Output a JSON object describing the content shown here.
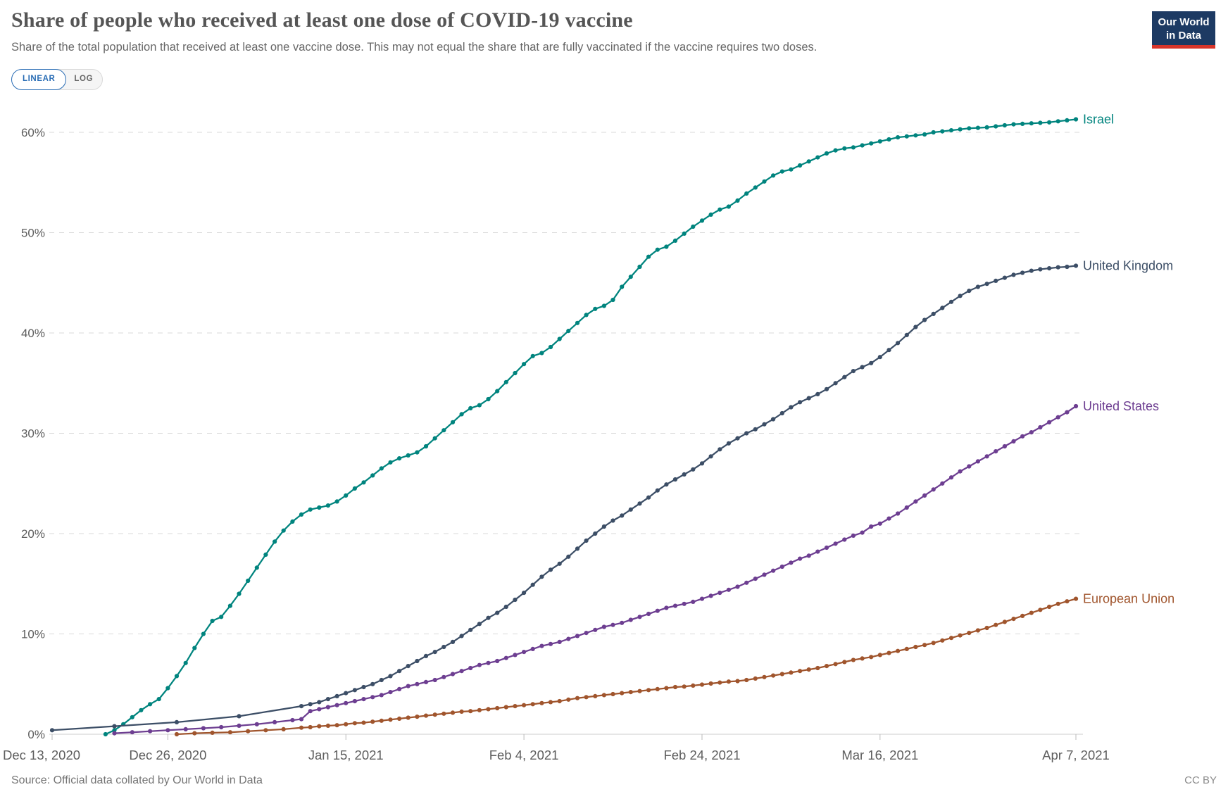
{
  "header": {
    "title": "Share of people who received at least one dose of COVID-19 vaccine",
    "subtitle": "Share of the total population that received at least one vaccine dose. This may not equal the share that are fully vaccinated if the vaccine requires two doses.",
    "logo_line1": "Our World",
    "logo_line2": "in Data",
    "logo_bg_color": "#1d3a63",
    "logo_accent_color": "#d8352a"
  },
  "toolbar": {
    "linear_label": "LINEAR",
    "log_label": "LOG",
    "active_scale": "LINEAR",
    "accent_color": "#2a6db5"
  },
  "footer": {
    "source": "Source: Official data collated by Our World in Data",
    "license": "CC BY"
  },
  "chart_data": {
    "type": "line",
    "title": "Share of people who received at least one dose of COVID-19 vaccine",
    "grid": "dashed-horizontal",
    "legend_position": "right-end-labels",
    "x_axis": {
      "start_date": "Dec 13, 2020",
      "end_date": "Apr 7, 2021",
      "total_days": 115,
      "tick_days": [
        0,
        13,
        33,
        53,
        73,
        93,
        115
      ],
      "tick_labels": [
        "Dec 13, 2020",
        "Dec 26, 2020",
        "Jan 15, 2021",
        "Feb 4, 2021",
        "Feb 24, 2021",
        "Mar 16, 2021",
        "Apr 7, 2021"
      ]
    },
    "y_axis": {
      "unit": "%",
      "ticks": [
        0,
        10,
        20,
        30,
        40,
        50,
        60
      ],
      "ylim": [
        0,
        62
      ]
    },
    "series": [
      {
        "name": "Israel",
        "color": "#00847E",
        "end_value": 61.3,
        "start_points": [],
        "daily_start_day": 6,
        "daily_values": [
          0.0,
          0.4,
          1.0,
          1.7,
          2.4,
          3.0,
          3.5,
          4.6,
          5.8,
          7.1,
          8.6,
          10.0,
          11.3,
          11.7,
          12.8,
          14.0,
          15.3,
          16.6,
          17.9,
          19.2,
          20.3,
          21.2,
          21.9,
          22.4,
          22.6,
          22.8,
          23.2,
          23.8,
          24.5,
          25.1,
          25.8,
          26.5,
          27.1,
          27.5,
          27.8,
          28.1,
          28.7,
          29.5,
          30.3,
          31.1,
          31.9,
          32.5,
          32.8,
          33.4,
          34.2,
          35.1,
          36.0,
          36.9,
          37.7,
          38.0,
          38.6,
          39.4,
          40.2,
          41.0,
          41.8,
          42.4,
          42.7,
          43.3,
          44.6,
          45.6,
          46.6,
          47.6,
          48.3,
          48.6,
          49.2,
          49.9,
          50.6,
          51.2,
          51.8,
          52.3,
          52.6,
          53.2,
          53.9,
          54.5,
          55.1,
          55.7,
          56.1,
          56.3,
          56.7,
          57.1,
          57.5,
          57.9,
          58.2,
          58.4,
          58.5,
          58.7,
          58.9,
          59.1,
          59.3,
          59.5,
          59.6,
          59.7,
          59.8,
          60.0,
          60.1,
          60.2,
          60.3,
          60.4,
          60.45,
          60.5,
          60.6,
          60.7,
          60.8,
          60.85,
          60.9,
          60.95,
          61.0,
          61.1,
          61.2,
          61.3
        ]
      },
      {
        "name": "United Kingdom",
        "color": "#3C4E66",
        "end_value": 46.7,
        "start_points": [
          [
            0,
            0.4
          ],
          [
            7,
            0.8
          ],
          [
            14,
            1.2
          ],
          [
            21,
            1.8
          ],
          [
            28,
            2.8
          ]
        ],
        "daily_start_day": 29,
        "daily_values": [
          3.0,
          3.2,
          3.5,
          3.8,
          4.1,
          4.4,
          4.7,
          5.0,
          5.4,
          5.8,
          6.3,
          6.8,
          7.3,
          7.8,
          8.2,
          8.7,
          9.2,
          9.8,
          10.4,
          11.0,
          11.6,
          12.1,
          12.7,
          13.4,
          14.1,
          14.9,
          15.7,
          16.4,
          17.0,
          17.7,
          18.5,
          19.3,
          20.0,
          20.7,
          21.3,
          21.8,
          22.4,
          23.0,
          23.6,
          24.3,
          24.9,
          25.4,
          25.9,
          26.4,
          27.0,
          27.7,
          28.4,
          29.0,
          29.5,
          30.0,
          30.4,
          30.9,
          31.4,
          32.0,
          32.6,
          33.1,
          33.5,
          33.9,
          34.4,
          35.0,
          35.6,
          36.2,
          36.6,
          37.0,
          37.6,
          38.3,
          39.0,
          39.8,
          40.6,
          41.3,
          41.9,
          42.5,
          43.1,
          43.7,
          44.2,
          44.6,
          44.9,
          45.2,
          45.5,
          45.8,
          46.0,
          46.2,
          46.35,
          46.45,
          46.55,
          46.6,
          46.7
        ]
      },
      {
        "name": "United States",
        "color": "#6D3E91",
        "end_value": 32.7,
        "start_points": [
          [
            7,
            0.1
          ],
          [
            9,
            0.2
          ],
          [
            11,
            0.3
          ],
          [
            13,
            0.4
          ],
          [
            15,
            0.5
          ],
          [
            17,
            0.6
          ],
          [
            19,
            0.7
          ],
          [
            21,
            0.85
          ],
          [
            23,
            1.0
          ],
          [
            25,
            1.2
          ],
          [
            27,
            1.4
          ],
          [
            28,
            1.5
          ]
        ],
        "daily_start_day": 29,
        "daily_values": [
          2.3,
          2.5,
          2.7,
          2.9,
          3.1,
          3.3,
          3.5,
          3.7,
          3.9,
          4.2,
          4.5,
          4.8,
          5.0,
          5.2,
          5.4,
          5.7,
          6.0,
          6.3,
          6.6,
          6.9,
          7.1,
          7.3,
          7.6,
          7.9,
          8.2,
          8.5,
          8.8,
          9.0,
          9.2,
          9.5,
          9.8,
          10.1,
          10.4,
          10.7,
          10.9,
          11.1,
          11.4,
          11.7,
          12.0,
          12.3,
          12.6,
          12.8,
          13.0,
          13.2,
          13.5,
          13.8,
          14.1,
          14.4,
          14.7,
          15.1,
          15.5,
          15.9,
          16.3,
          16.7,
          17.1,
          17.5,
          17.8,
          18.2,
          18.6,
          19.0,
          19.4,
          19.8,
          20.1,
          20.7,
          21.0,
          21.5,
          22.0,
          22.6,
          23.2,
          23.8,
          24.4,
          25.0,
          25.6,
          26.2,
          26.7,
          27.2,
          27.7,
          28.2,
          28.7,
          29.2,
          29.7,
          30.1,
          30.6,
          31.1,
          31.6,
          32.1,
          32.7
        ]
      },
      {
        "name": "European Union",
        "color": "#A0552D",
        "end_value": 13.5,
        "start_points": [
          [
            14,
            0.0
          ],
          [
            16,
            0.1
          ],
          [
            18,
            0.15
          ],
          [
            20,
            0.2
          ],
          [
            22,
            0.3
          ],
          [
            24,
            0.4
          ],
          [
            26,
            0.5
          ],
          [
            28,
            0.65
          ]
        ],
        "daily_start_day": 29,
        "daily_values": [
          0.7,
          0.8,
          0.85,
          0.9,
          1.0,
          1.1,
          1.15,
          1.25,
          1.35,
          1.45,
          1.55,
          1.65,
          1.75,
          1.85,
          1.95,
          2.05,
          2.15,
          2.25,
          2.3,
          2.4,
          2.5,
          2.6,
          2.7,
          2.8,
          2.9,
          3.0,
          3.1,
          3.2,
          3.3,
          3.45,
          3.6,
          3.7,
          3.8,
          3.9,
          4.0,
          4.1,
          4.2,
          4.3,
          4.4,
          4.5,
          4.6,
          4.7,
          4.75,
          4.85,
          4.95,
          5.05,
          5.15,
          5.25,
          5.3,
          5.4,
          5.55,
          5.7,
          5.85,
          6.0,
          6.15,
          6.3,
          6.45,
          6.6,
          6.8,
          7.0,
          7.2,
          7.4,
          7.55,
          7.7,
          7.9,
          8.1,
          8.3,
          8.5,
          8.7,
          8.9,
          9.1,
          9.35,
          9.6,
          9.85,
          10.1,
          10.35,
          10.6,
          10.9,
          11.2,
          11.5,
          11.8,
          12.1,
          12.4,
          12.7,
          13.0,
          13.25,
          13.5
        ]
      }
    ]
  }
}
